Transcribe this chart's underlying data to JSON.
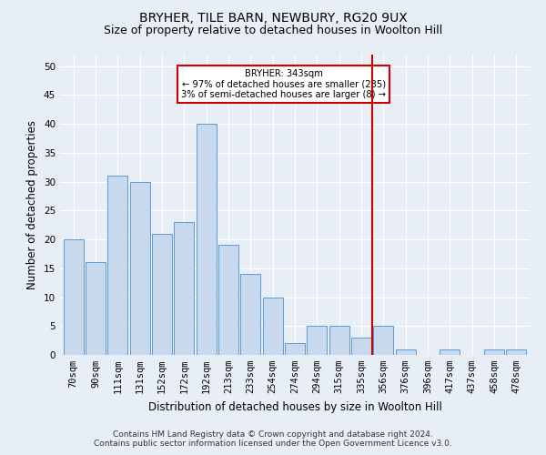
{
  "title": "BRYHER, TILE BARN, NEWBURY, RG20 9UX",
  "subtitle": "Size of property relative to detached houses in Woolton Hill",
  "xlabel": "Distribution of detached houses by size in Woolton Hill",
  "ylabel": "Number of detached properties",
  "categories": [
    "70sqm",
    "90sqm",
    "111sqm",
    "131sqm",
    "152sqm",
    "172sqm",
    "192sqm",
    "213sqm",
    "233sqm",
    "254sqm",
    "274sqm",
    "294sqm",
    "315sqm",
    "335sqm",
    "356sqm",
    "376sqm",
    "396sqm",
    "417sqm",
    "437sqm",
    "458sqm",
    "478sqm"
  ],
  "values": [
    20,
    16,
    31,
    30,
    21,
    23,
    40,
    19,
    14,
    10,
    2,
    5,
    5,
    3,
    5,
    1,
    0,
    1,
    0,
    1,
    1
  ],
  "bar_color": "#c8d9ed",
  "bar_edge_color": "#5b9bd5",
  "vline_x": 14.0,
  "vline_color": "#cc0000",
  "annotation_text": "BRYHER: 343sqm\n← 97% of detached houses are smaller (235)\n3% of semi-detached houses are larger (8) →",
  "annotation_box_color": "#ffffff",
  "annotation_box_edge_color": "#cc0000",
  "ylim": [
    0,
    52
  ],
  "yticks": [
    0,
    5,
    10,
    15,
    20,
    25,
    30,
    35,
    40,
    45,
    50
  ],
  "footnote": "Contains HM Land Registry data © Crown copyright and database right 2024.\nContains public sector information licensed under the Open Government Licence v3.0.",
  "background_color": "#e8eef6",
  "plot_background_color": "#e8eef6",
  "grid_color": "#ffffff",
  "title_fontsize": 10,
  "subtitle_fontsize": 9,
  "axis_label_fontsize": 8.5,
  "tick_fontsize": 7.5,
  "footnote_fontsize": 6.5
}
